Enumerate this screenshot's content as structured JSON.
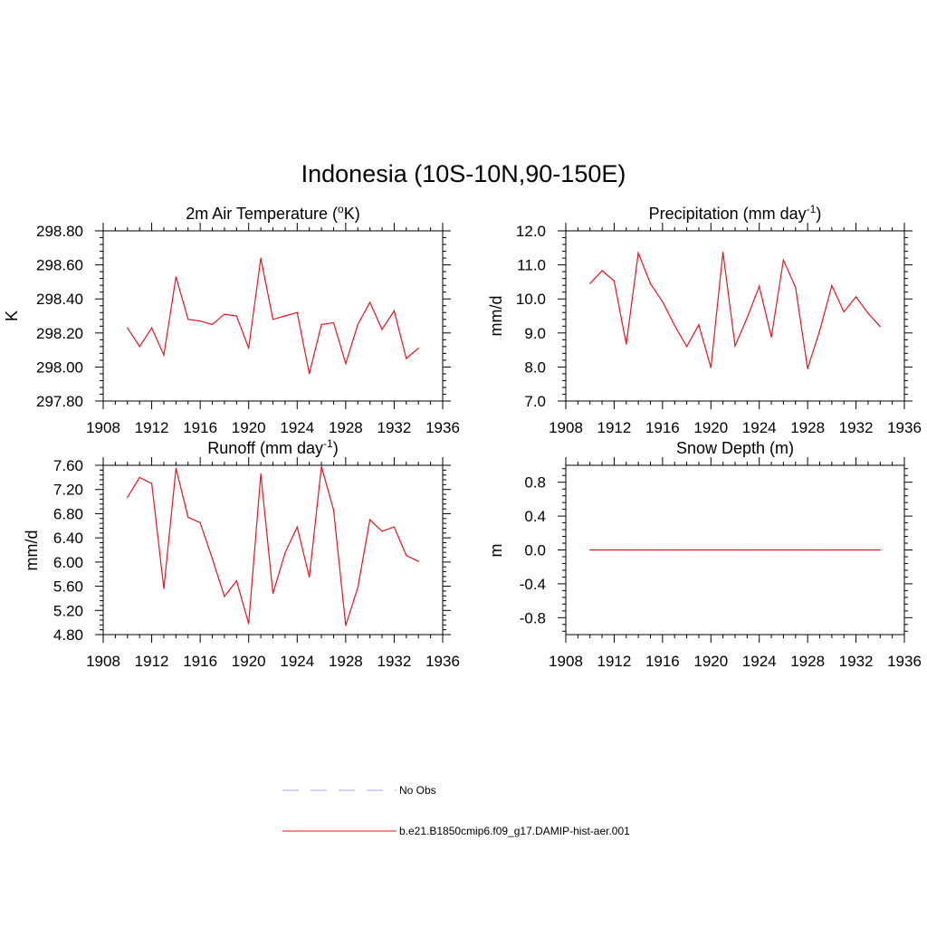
{
  "figure": {
    "title": "Indonesia (10S-10N,90-150E)"
  },
  "colors": {
    "series": "#e8141c",
    "obs": "#a6a6ff",
    "axis": "#000000"
  },
  "chart_data": [
    {
      "type": "line",
      "title": "2m Air Temperature (oK)",
      "title_parts": {
        "before": "2m Air Temperature (",
        "sup": "o",
        "after": "K)"
      },
      "xlabel": "",
      "ylabel": "K",
      "xlim": [
        1908,
        1936
      ],
      "ylim": [
        297.8,
        298.8
      ],
      "xticks": [
        1908,
        1912,
        1916,
        1920,
        1924,
        1928,
        1932,
        1936
      ],
      "yticks": [
        297.8,
        298.0,
        298.2,
        298.4,
        298.6,
        298.8
      ],
      "ytick_labels": [
        "297.80",
        "298.00",
        "298.20",
        "298.40",
        "298.60",
        "298.80"
      ],
      "x": [
        1910,
        1911,
        1912,
        1913,
        1914,
        1915,
        1916,
        1917,
        1918,
        1919,
        1920,
        1921,
        1922,
        1923,
        1924,
        1925,
        1926,
        1927,
        1928,
        1929,
        1930,
        1931,
        1932,
        1933,
        1934
      ],
      "series": [
        {
          "name": "b.e21.B1850cmip6.f09_g17.DAMIP-hist-aer.001",
          "values": [
            298.23,
            298.12,
            298.23,
            298.07,
            298.53,
            298.28,
            298.27,
            298.25,
            298.31,
            298.3,
            298.11,
            298.64,
            298.28,
            298.3,
            298.32,
            297.96,
            298.25,
            298.26,
            298.02,
            298.25,
            298.38,
            298.22,
            298.33,
            298.05,
            298.11
          ]
        }
      ]
    },
    {
      "type": "line",
      "title": "Precipitation (mm day-1)",
      "title_parts": {
        "before": "Precipitation (mm day",
        "sup": "-1",
        "after": ")"
      },
      "xlabel": "",
      "ylabel": "mm/d",
      "xlim": [
        1908,
        1936
      ],
      "ylim": [
        7.0,
        12.0
      ],
      "xticks": [
        1908,
        1912,
        1916,
        1920,
        1924,
        1928,
        1932,
        1936
      ],
      "yticks": [
        7.0,
        8.0,
        9.0,
        10.0,
        11.0,
        12.0
      ],
      "ytick_labels": [
        "7.0",
        "8.0",
        "9.0",
        "10.0",
        "11.0",
        "12.0"
      ],
      "x": [
        1910,
        1911,
        1912,
        1913,
        1914,
        1915,
        1916,
        1917,
        1918,
        1919,
        1920,
        1921,
        1922,
        1923,
        1924,
        1925,
        1926,
        1927,
        1928,
        1929,
        1930,
        1931,
        1932,
        1933,
        1934
      ],
      "series": [
        {
          "name": "b.e21.B1850cmip6.f09_g17.DAMIP-hist-aer.001",
          "values": [
            10.45,
            10.83,
            10.53,
            8.67,
            11.35,
            10.45,
            9.92,
            9.22,
            8.6,
            9.24,
            7.98,
            11.37,
            8.62,
            9.45,
            10.37,
            8.88,
            11.14,
            10.34,
            7.95,
            9.07,
            10.39,
            9.62,
            10.06,
            9.58,
            9.19
          ]
        }
      ]
    },
    {
      "type": "line",
      "title": "Runoff (mm day-1)",
      "title_parts": {
        "before": "Runoff (mm day",
        "sup": "-1",
        "after": ")"
      },
      "xlabel": "",
      "ylabel": "mm/d",
      "xlim": [
        1908,
        1936
      ],
      "ylim": [
        4.8,
        7.6
      ],
      "xticks": [
        1908,
        1912,
        1916,
        1920,
        1924,
        1928,
        1932,
        1936
      ],
      "yticks": [
        4.8,
        5.2,
        5.6,
        6.0,
        6.4,
        6.8,
        7.2,
        7.6
      ],
      "ytick_labels": [
        "4.80",
        "5.20",
        "5.60",
        "6.00",
        "6.40",
        "6.80",
        "7.20",
        "7.60"
      ],
      "x": [
        1910,
        1911,
        1912,
        1913,
        1914,
        1915,
        1916,
        1917,
        1918,
        1919,
        1920,
        1921,
        1922,
        1923,
        1924,
        1925,
        1926,
        1927,
        1928,
        1929,
        1930,
        1931,
        1932,
        1933,
        1934
      ],
      "series": [
        {
          "name": "b.e21.B1850cmip6.f09_g17.DAMIP-hist-aer.001",
          "values": [
            7.07,
            7.4,
            7.3,
            5.56,
            7.55,
            6.74,
            6.65,
            6.06,
            5.43,
            5.69,
            4.98,
            7.46,
            5.48,
            6.15,
            6.58,
            5.75,
            7.58,
            6.86,
            4.95,
            5.58,
            6.7,
            6.51,
            6.58,
            6.11,
            6.01
          ]
        }
      ]
    },
    {
      "type": "line",
      "title": "Snow Depth (m)",
      "title_parts": {
        "before": "Snow Depth (m)",
        "sup": "",
        "after": ""
      },
      "xlabel": "",
      "ylabel": "m",
      "xlim": [
        1908,
        1936
      ],
      "ylim": [
        -1.0,
        1.0
      ],
      "xticks": [
        1908,
        1912,
        1916,
        1920,
        1924,
        1928,
        1932,
        1936
      ],
      "yticks": [
        -0.8,
        -0.4,
        0.0,
        0.4,
        0.8
      ],
      "ytick_labels": [
        "-0.8",
        "-0.4",
        "0.0",
        "0.4",
        "0.8"
      ],
      "x": [
        1910,
        1911,
        1912,
        1913,
        1914,
        1915,
        1916,
        1917,
        1918,
        1919,
        1920,
        1921,
        1922,
        1923,
        1924,
        1925,
        1926,
        1927,
        1928,
        1929,
        1930,
        1931,
        1932,
        1933,
        1934
      ],
      "series": [
        {
          "name": "b.e21.B1850cmip6.f09_g17.DAMIP-hist-aer.001",
          "values": [
            0,
            0,
            0,
            0,
            0,
            0,
            0,
            0,
            0,
            0,
            0,
            0,
            0,
            0,
            0,
            0,
            0,
            0,
            0,
            0,
            0,
            0,
            0,
            0,
            0
          ]
        }
      ]
    }
  ],
  "legend": {
    "entries": [
      {
        "label": "No Obs",
        "style": "dashed",
        "color": "#a6a6ff"
      },
      {
        "label": "b.e21.B1850cmip6.f09_g17.DAMIP-hist-aer.001",
        "style": "solid",
        "color": "#e8141c"
      }
    ]
  }
}
